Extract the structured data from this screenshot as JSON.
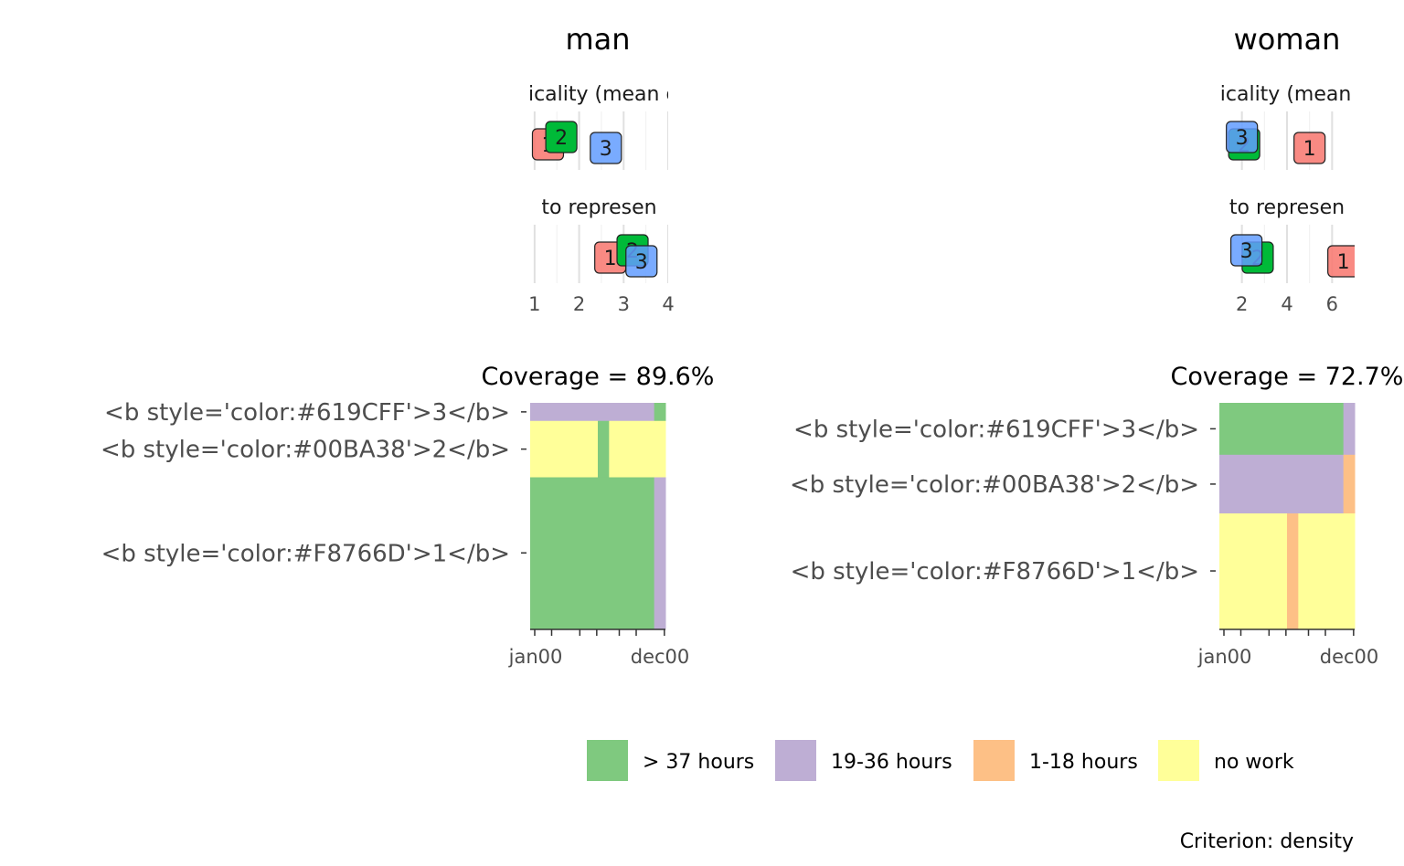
{
  "chart_data": [
    {
      "type": "scatter",
      "title": "man",
      "facets": [
        {
          "label": "typicality (mean dist",
          "points": [
            {
              "x": 1.3,
              "label": "1",
              "cluster": "1"
            },
            {
              "x": 1.6,
              "label": "2",
              "cluster": "2"
            },
            {
              "x": 2.6,
              "label": "3",
              "cluster": "3"
            }
          ]
        },
        {
          "label": "to represen",
          "points": [
            {
              "x": 2.7,
              "label": "1",
              "cluster": "1"
            },
            {
              "x": 3.2,
              "label": "2",
              "cluster": "2"
            },
            {
              "x": 3.4,
              "label": "3",
              "cluster": "3"
            }
          ]
        }
      ],
      "x_ticks": [
        1,
        2,
        3,
        4
      ],
      "xlim": [
        0.9,
        4.0
      ]
    },
    {
      "type": "scatter",
      "title": "woman",
      "facets": [
        {
          "label": "typicality (mean dis",
          "points": [
            {
              "x": 2.1,
              "label": "2",
              "cluster": "2"
            },
            {
              "x": 2.0,
              "label": "3",
              "cluster": "3"
            },
            {
              "x": 5.0,
              "label": "1",
              "cluster": "1"
            }
          ]
        },
        {
          "label": "to represen",
          "points": [
            {
              "x": 2.7,
              "label": "2",
              "cluster": "2"
            },
            {
              "x": 2.2,
              "label": "3",
              "cluster": "3"
            },
            {
              "x": 6.5,
              "label": "1",
              "cluster": "1"
            }
          ]
        }
      ],
      "x_ticks": [
        2,
        4,
        6
      ],
      "xlim": [
        1.0,
        7.0
      ]
    },
    {
      "type": "heatmap",
      "title": "Coverage = 89.6%",
      "rows": [
        {
          "label": "<b style='color:#619CFF'>3</b>",
          "share": 0.08,
          "segments": [
            {
              "state": "19-36 hours",
              "from": 0,
              "to": 11
            },
            {
              "state": "> 37 hours",
              "from": 11,
              "to": 12
            }
          ]
        },
        {
          "label": "<b style='color:#00BA38'>2</b>",
          "share": 0.25,
          "segments": [
            {
              "state": "no work",
              "from": 0,
              "to": 6
            },
            {
              "state": "> 37 hours",
              "from": 6,
              "to": 7
            },
            {
              "state": "no work",
              "from": 7,
              "to": 12
            }
          ]
        },
        {
          "label": "<b style='color:#F8766D'>1</b>",
          "share": 0.67,
          "segments": [
            {
              "state": "> 37 hours",
              "from": 0,
              "to": 11
            },
            {
              "state": "19-36 hours",
              "from": 11,
              "to": 12
            }
          ]
        }
      ],
      "x_ticks": [
        "jan00",
        "dec00"
      ]
    },
    {
      "type": "heatmap",
      "title": "Coverage = 72.7%",
      "rows": [
        {
          "label": "<b style='color:#619CFF'>3</b>",
          "share": 0.23,
          "segments": [
            {
              "state": "> 37 hours",
              "from": 0,
              "to": 11
            },
            {
              "state": "19-36 hours",
              "from": 11,
              "to": 12
            }
          ]
        },
        {
          "label": "<b style='color:#00BA38'>2</b>",
          "share": 0.26,
          "segments": [
            {
              "state": "19-36 hours",
              "from": 0,
              "to": 11
            },
            {
              "state": "1-18 hours",
              "from": 11,
              "to": 12
            }
          ]
        },
        {
          "label": "<b style='color:#F8766D'>1</b>",
          "share": 0.51,
          "segments": [
            {
              "state": "no work",
              "from": 0,
              "to": 6
            },
            {
              "state": "1-18 hours",
              "from": 6,
              "to": 7
            },
            {
              "state": "no work",
              "from": 7,
              "to": 12
            }
          ]
        }
      ],
      "x_ticks": [
        "jan00",
        "dec00"
      ]
    }
  ],
  "legend": {
    "items": [
      {
        "label": "> 37 hours",
        "color": "#7FC97F"
      },
      {
        "label": "19-36 hours",
        "color": "#BEAED4"
      },
      {
        "label": "1-18 hours",
        "color": "#FDC086"
      },
      {
        "label": "no work",
        "color": "#FFFF99"
      }
    ]
  },
  "cluster_colors": {
    "1": "#F8766D",
    "2": "#00BA38",
    "3": "#619CFF"
  },
  "caption": "Criterion: density"
}
